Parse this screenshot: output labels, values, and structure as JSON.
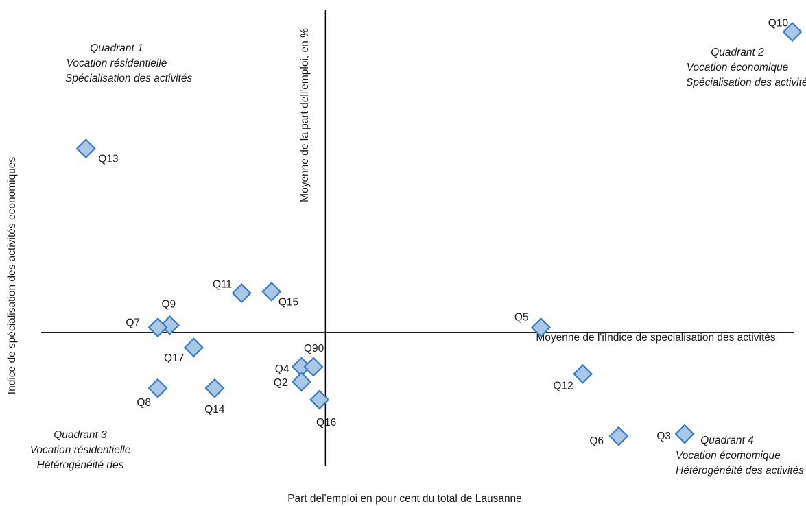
{
  "chart_data": {
    "type": "scatter",
    "xlabel": "Part del'emploi en pour cent du total de Lausanne",
    "ylabel": "Indice de spécialisation des activités economiques",
    "vline_label": "Moyenne de la part dell'emploi, en %",
    "hline_label": "Moyenne de l'iIndice de specialisation des activités",
    "marker_color": "#a9c8e8",
    "marker_stroke": "#3d7cc0",
    "points": [
      {
        "label": "Q13",
        "x": 0.8,
        "y": 2.57
      },
      {
        "label": "Q11",
        "x": 6.0,
        "y": 0.55
      },
      {
        "label": "Q15",
        "x": 7.0,
        "y": 0.57
      },
      {
        "label": "Q9",
        "x": 3.6,
        "y": 0.1
      },
      {
        "label": "Q7",
        "x": 3.2,
        "y": 0.07
      },
      {
        "label": "Q17",
        "x": 4.4,
        "y": -0.21
      },
      {
        "label": "Q8",
        "x": 3.2,
        "y": -0.78
      },
      {
        "label": "Q14",
        "x": 5.1,
        "y": -0.78
      },
      {
        "label": "Q4",
        "x": 8.0,
        "y": -0.48
      },
      {
        "label": "Q90",
        "x": 8.4,
        "y": -0.48
      },
      {
        "label": "Q2",
        "x": 8.0,
        "y": -0.69
      },
      {
        "label": "Q16",
        "x": 8.6,
        "y": -0.94
      },
      {
        "label": "Q5",
        "x": 16.0,
        "y": 0.07
      },
      {
        "label": "Q12",
        "x": 17.4,
        "y": -0.58
      },
      {
        "label": "Q6",
        "x": 18.6,
        "y": -1.45
      },
      {
        "label": "Q3",
        "x": 20.8,
        "y": -1.42
      },
      {
        "label": "Q10",
        "x": 24.4,
        "y": 4.2
      }
    ],
    "xlim": [
      -1.2,
      25.2
    ],
    "ylim": [
      -2.1,
      4.55
    ],
    "x_mean": 8.8,
    "y_mean": 0.0
  },
  "quadrants": {
    "q1": {
      "title": "Quadrant 1",
      "line1": "Vocation résidentielle",
      "line2": "Spécialisation des activités"
    },
    "q2": {
      "title": "Quadrant 2",
      "line1": "Vocation économique",
      "line2": "Spécialisation des activités"
    },
    "q3": {
      "title": "Quadrant 3",
      "line1": "Vocation résidentielle",
      "line2": "Hétérogénéité des"
    },
    "q4": {
      "title": "Quadrant 4",
      "line1": "Vocation écomomique",
      "line2": "Hétérogénéité des activités"
    }
  }
}
